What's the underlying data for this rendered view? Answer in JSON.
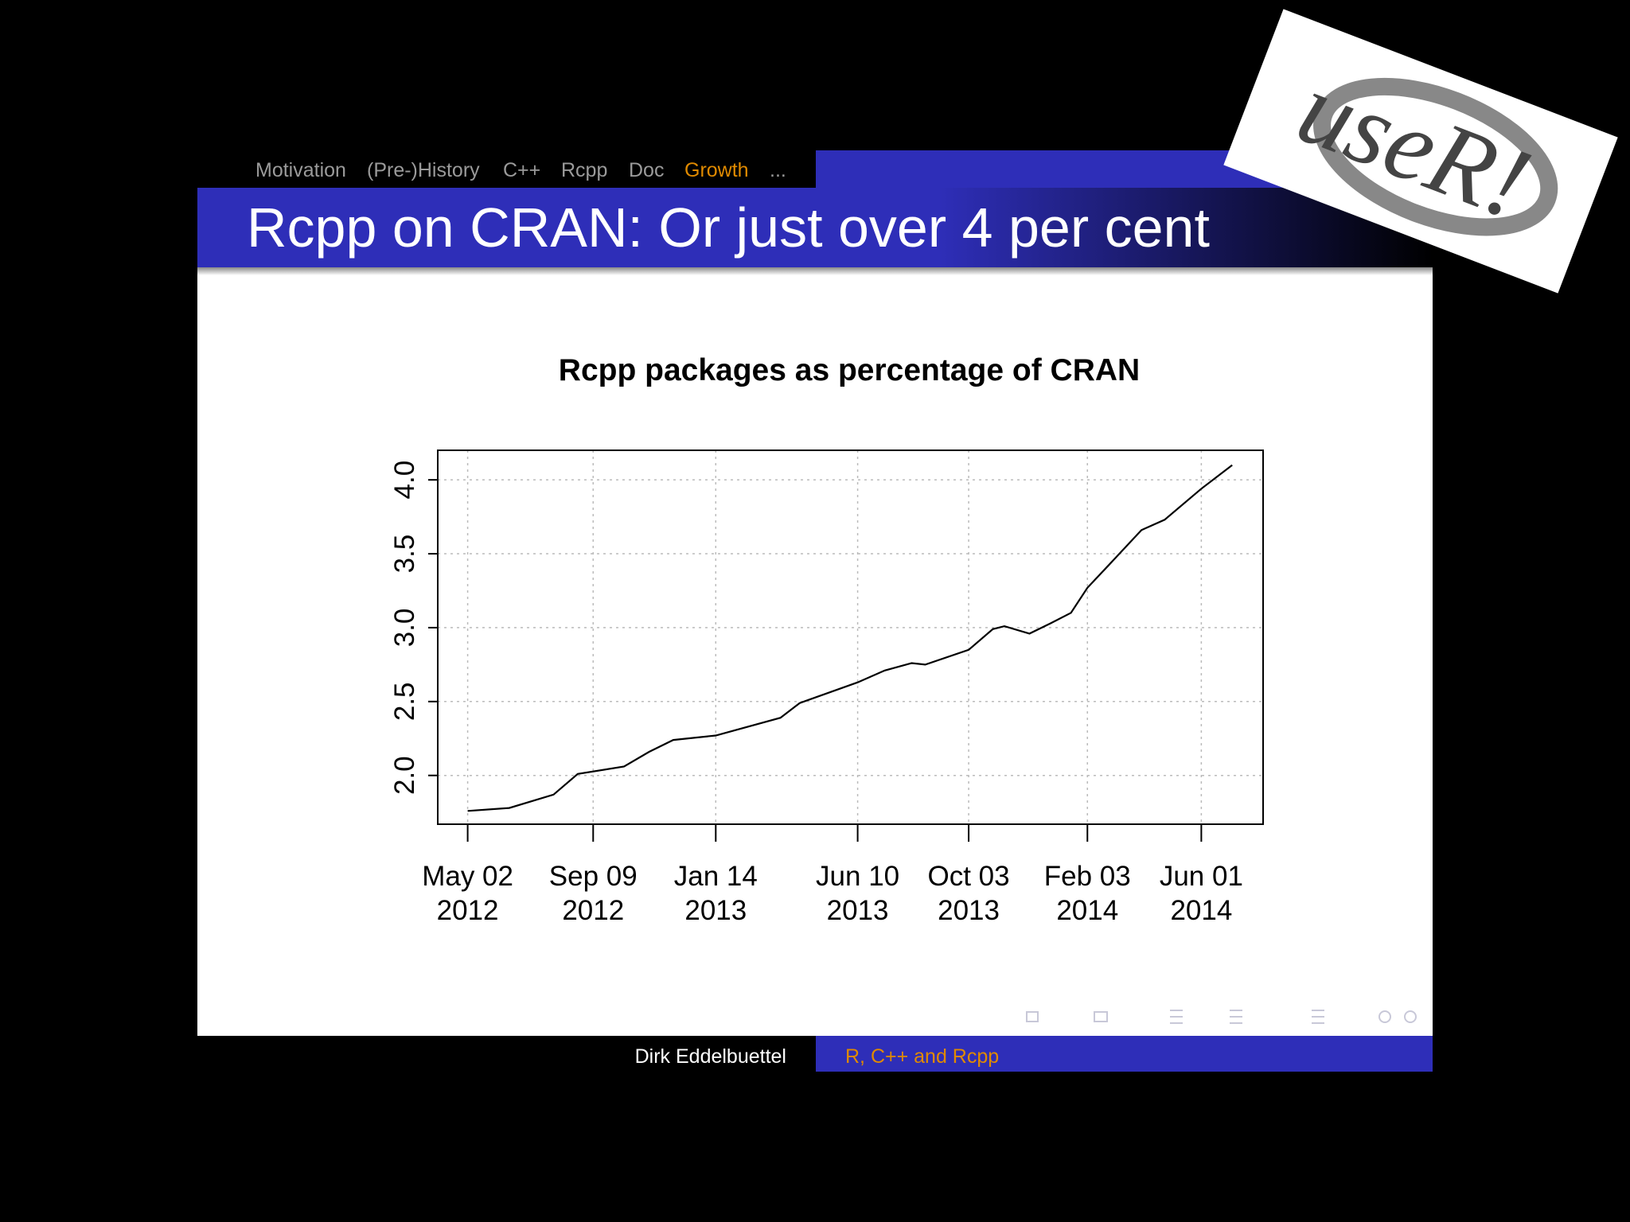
{
  "nav": {
    "items": [
      "Motivation",
      "(Pre-)History",
      "C++",
      "Rcpp",
      "Doc",
      "Growth",
      "..."
    ]
  },
  "slide_title": "Rcpp on CRAN: Or just over 4 per cent",
  "logo": "useR!",
  "footer": {
    "author": "Dirk Eddelbuettel",
    "talk": "R, C++ and Rcpp"
  },
  "chart_data": {
    "type": "line",
    "title": "Rcpp packages as percentage of CRAN",
    "color": "#000000",
    "grid": true,
    "x": [
      "2012-05-02",
      "2012-06-14",
      "2012-07-30",
      "2012-08-24",
      "2012-10-11",
      "2012-11-06",
      "2012-12-01",
      "2013-01-14",
      "2013-03-22",
      "2013-04-11",
      "2013-06-10",
      "2013-07-08",
      "2013-08-05",
      "2013-08-19",
      "2013-10-03",
      "2013-10-28",
      "2013-11-09",
      "2013-12-05",
      "2013-12-27",
      "2014-01-17",
      "2014-02-03",
      "2014-03-01",
      "2014-03-31",
      "2014-04-24",
      "2014-06-01",
      "2014-07-03"
    ],
    "values": [
      1.76,
      1.78,
      1.87,
      2.01,
      2.06,
      2.16,
      2.24,
      2.27,
      2.39,
      2.49,
      2.63,
      2.71,
      2.76,
      2.75,
      2.85,
      2.99,
      3.01,
      2.96,
      3.03,
      3.1,
      3.27,
      3.45,
      3.66,
      3.73,
      3.94,
      4.1
    ],
    "xlim": [
      "2012-04-01",
      "2014-08-04"
    ],
    "xticks": [
      {
        "value": "2012-05-02",
        "label": "May 02\n2012"
      },
      {
        "value": "2012-09-09",
        "label": "Sep 09\n2012"
      },
      {
        "value": "2013-01-14",
        "label": "Jan 14\n2013"
      },
      {
        "value": "2013-06-10",
        "label": "Jun 10\n2013"
      },
      {
        "value": "2013-10-03",
        "label": "Oct 03\n2013"
      },
      {
        "value": "2014-02-03",
        "label": "Feb 03\n2014"
      },
      {
        "value": "2014-06-01",
        "label": "Jun 01\n2014"
      }
    ],
    "ylim": [
      1.67,
      4.2
    ],
    "yticks": [
      {
        "value": 2,
        "label": "2.0"
      },
      {
        "value": 2.5,
        "label": "2.5"
      },
      {
        "value": 3,
        "label": "3.0"
      },
      {
        "value": 3.5,
        "label": "3.5"
      },
      {
        "value": 4,
        "label": "4.0"
      }
    ]
  }
}
